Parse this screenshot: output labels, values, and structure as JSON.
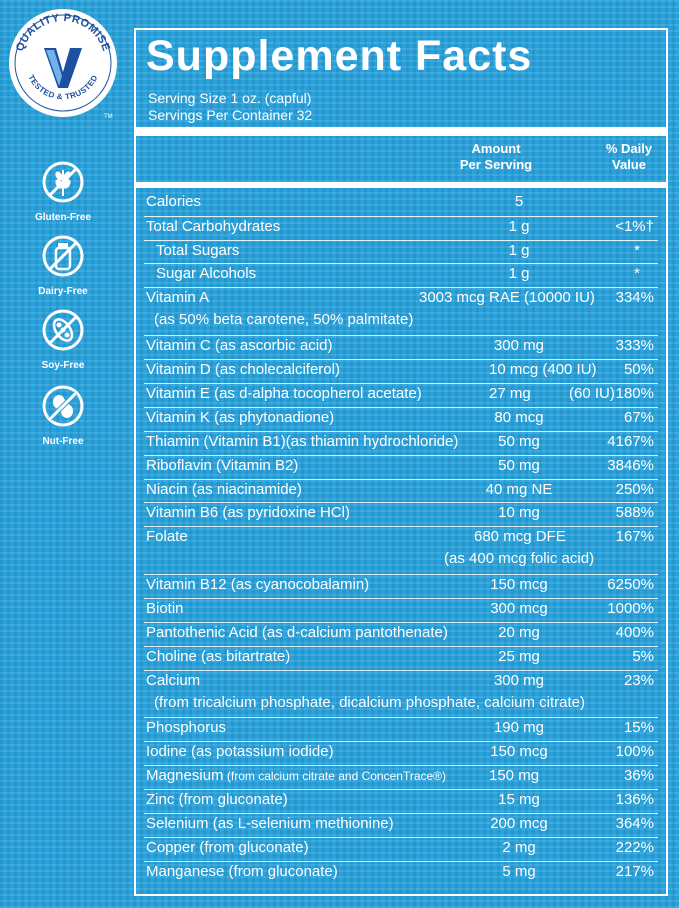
{
  "badge": {
    "top_text": "QUALITY PROMISE",
    "bottom_text": "TESTED & TRUSTED",
    "tm": "TM"
  },
  "allergens": [
    {
      "label": "Gluten-Free",
      "icon": "wheat-icon"
    },
    {
      "label": "Dairy-Free",
      "icon": "milk-bottle-icon"
    },
    {
      "label": "Soy-Free",
      "icon": "soybean-icon"
    },
    {
      "label": "Nut-Free",
      "icon": "peanut-icon"
    }
  ],
  "facts": {
    "title": "Supplement Facts",
    "serving_size": "Serving Size 1 oz. (capful)",
    "servings_per_container": "Servings Per Container 32",
    "col_amount_1": "Amount",
    "col_amount_2": "Per Serving",
    "col_dv_1": "% Daily",
    "col_dv_2": "Value",
    "rows": [
      {
        "name": "Calories",
        "amount": "5",
        "dv": ""
      },
      {
        "name": "Total Carbohydrates",
        "amount": "1 g",
        "dv": "<1%†"
      },
      {
        "name": "Total Sugars",
        "amount": "1 g",
        "dv": "*"
      },
      {
        "name": "Sugar Alcohols",
        "amount": "1 g",
        "dv": "*"
      },
      {
        "name": "Vitamin A",
        "amount": "3003 mcg RAE (10000 IU)",
        "dv": "334%",
        "sub": "(as 50% beta carotene, 50% palmitate)"
      },
      {
        "name": "Vitamin C (as ascorbic acid)",
        "amount": "300 mg",
        "dv": "333%"
      },
      {
        "name": "Vitamin D (as cholecalciferol)",
        "amount": "10 mcg (400 IU)",
        "dv": "50%"
      },
      {
        "name": "Vitamin E (as d-alpha tocopherol acetate)",
        "amount": "27 mg",
        "amount_extra": "(60 IU)",
        "dv": "180%"
      },
      {
        "name": "Vitamin K (as phytonadione)",
        "amount": "80 mcg",
        "dv": "67%"
      },
      {
        "name": "Thiamin (Vitamin B1)(as thiamin hydrochloride)",
        "amount": "50 mg",
        "dv": "4167%"
      },
      {
        "name": "Riboflavin (Vitamin B2)",
        "amount": "50 mg",
        "dv": "3846%"
      },
      {
        "name": "Niacin (as niacinamide)",
        "amount": "40 mg NE",
        "dv": "250%"
      },
      {
        "name": "Vitamin B6 (as pyridoxine HCl)",
        "amount": "10 mg",
        "dv": "588%"
      },
      {
        "name": "Folate",
        "amount": "680 mcg DFE",
        "dv": "167%",
        "sub": "(as 400 mcg folic acid)"
      },
      {
        "name": "Vitamin B12 (as cyanocobalamin)",
        "amount": "150 mcg",
        "dv": "6250%"
      },
      {
        "name": "Biotin",
        "amount": "300 mcg",
        "dv": "1000%"
      },
      {
        "name": "Pantothenic Acid (as d-calcium pantothenate)",
        "amount": "20 mg",
        "dv": "400%"
      },
      {
        "name": "Choline (as bitartrate)",
        "amount": "25 mg",
        "dv": "5%"
      },
      {
        "name": "Calcium",
        "amount": "300 mg",
        "dv": "23%",
        "sub": "(from tricalcium phosphate, dicalcium phosphate, calcium citrate)"
      },
      {
        "name": "Phosphorus",
        "amount": "190 mg",
        "dv": "15%"
      },
      {
        "name": "Iodine (as potassium iodide)",
        "amount": "150 mcg",
        "dv": "100%"
      },
      {
        "name": "Magnesium",
        "name_small": "(from calcium citrate and ConcenTrace®)",
        "amount": "150 mg",
        "dv": "36%"
      },
      {
        "name": "Zinc (from gluconate)",
        "amount": "15 mg",
        "dv": "136%"
      },
      {
        "name": "Selenium (as L-selenium methionine)",
        "amount": "200 mcg",
        "dv": "364%"
      },
      {
        "name": "Copper (from gluconate)",
        "amount": "2 mg",
        "dv": "222%"
      },
      {
        "name": "Manganese (from gluconate)",
        "amount": "5 mg",
        "dv": "217%"
      }
    ]
  },
  "colors": {
    "background": "#29a2db",
    "text": "#ffffff",
    "badge_blue": "#1e4fa0"
  }
}
